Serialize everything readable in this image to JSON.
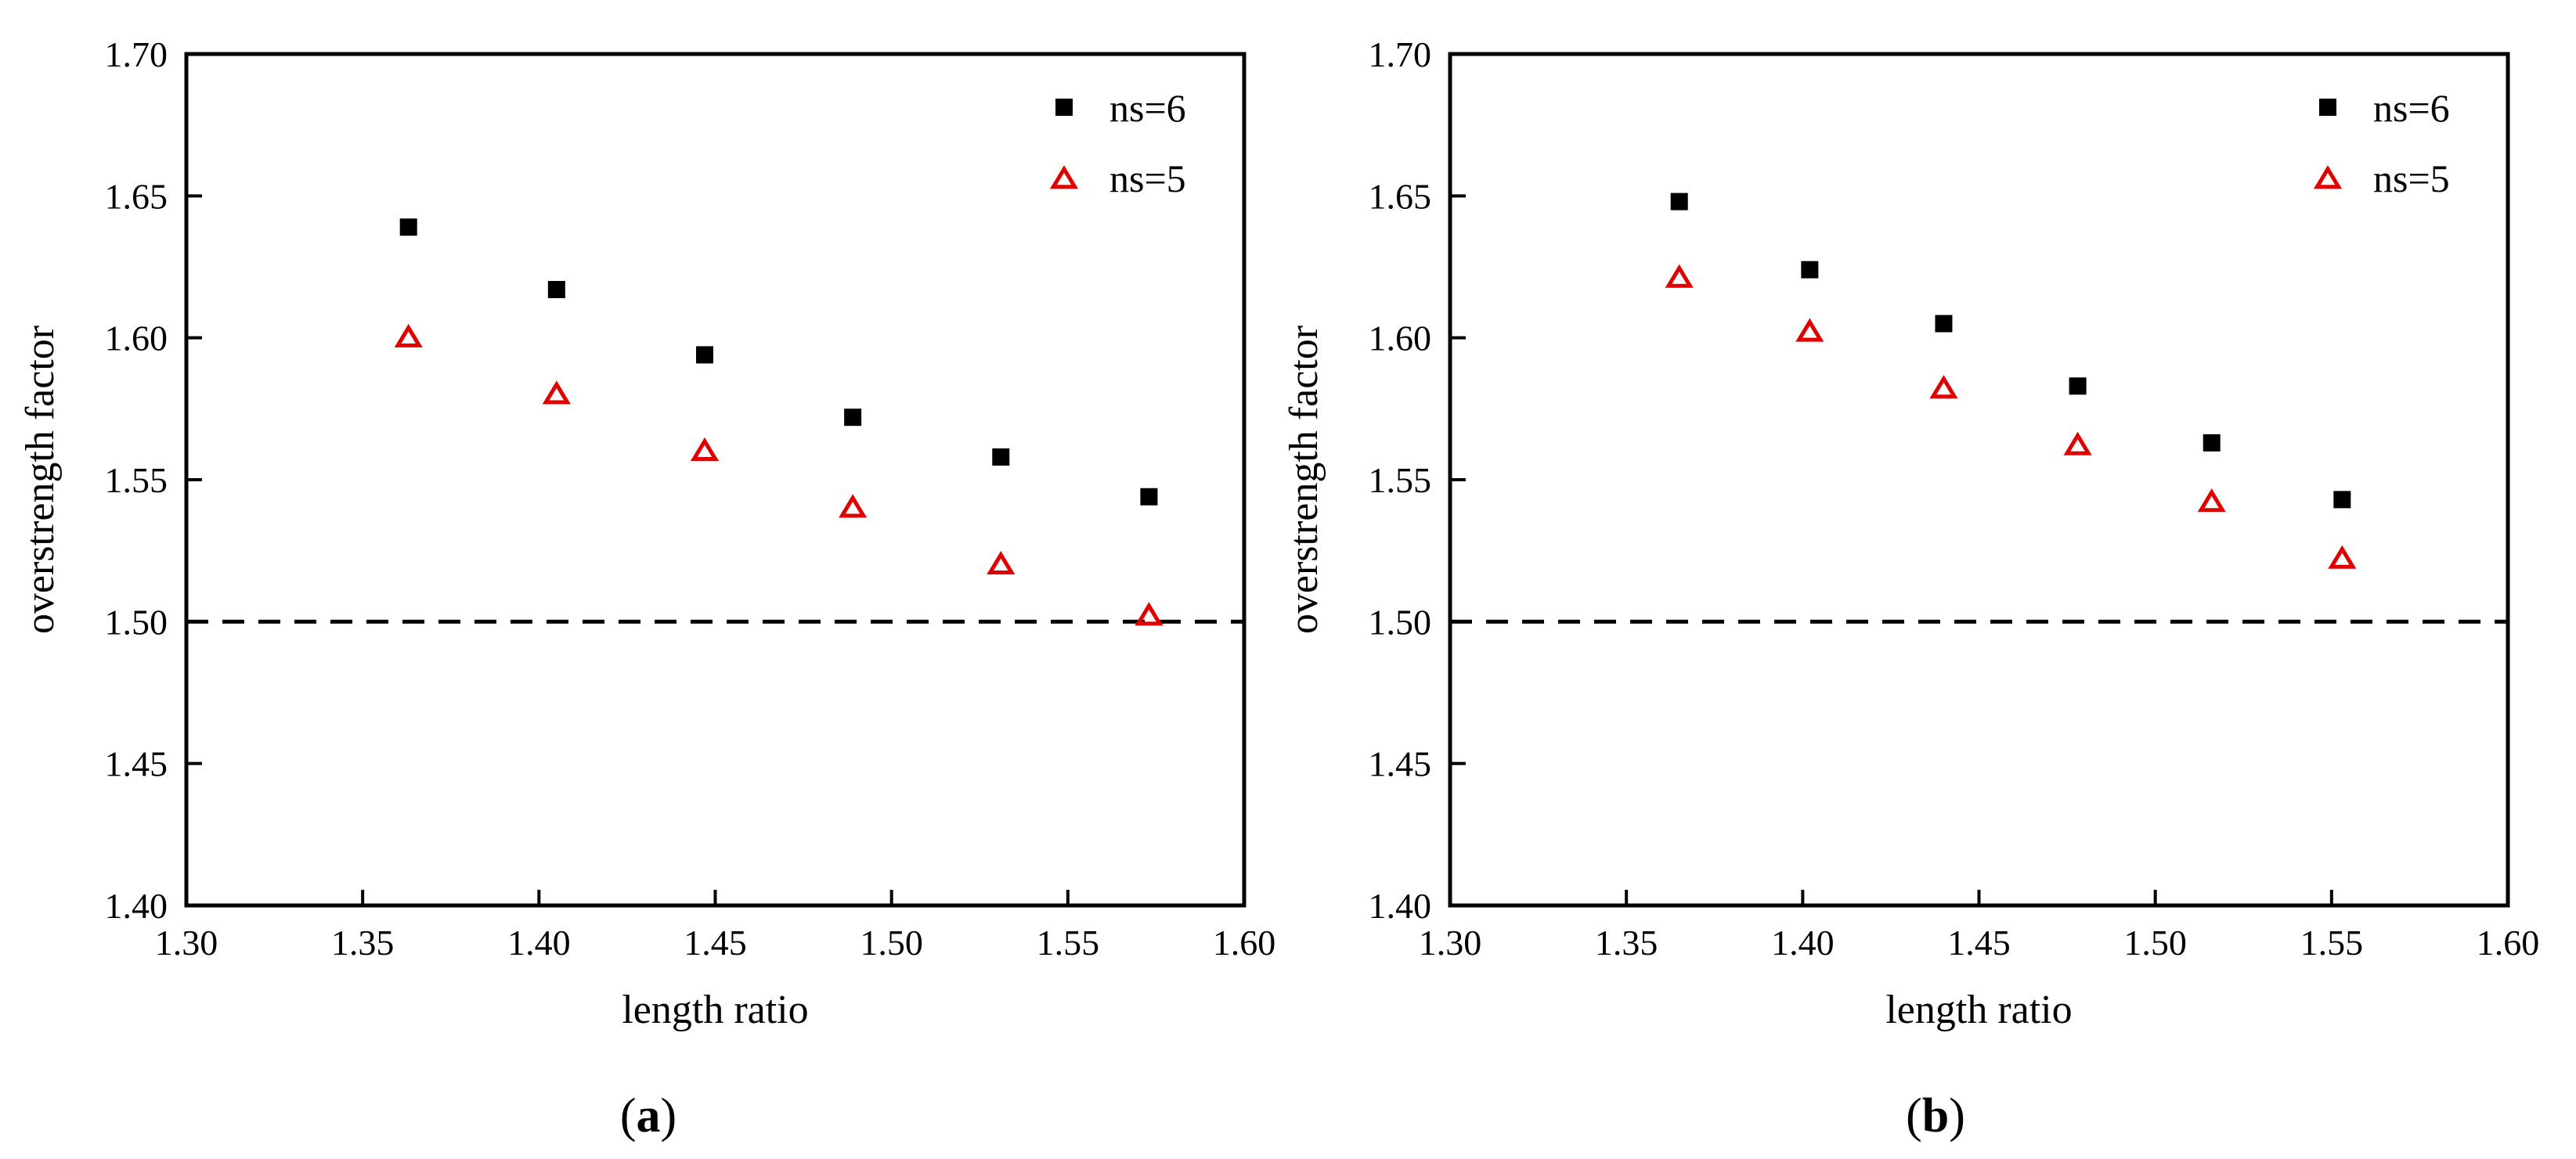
{
  "colors": {
    "series_ns6": "#000000",
    "series_ns5": "#e00000",
    "reference_line": "#000000"
  },
  "chart_data": [
    {
      "type": "scatter",
      "panel_label": {
        "open": "(",
        "letter": "a",
        "close": ")"
      },
      "xlabel": "length ratio",
      "ylabel": "overstrength factor",
      "xlim": [
        1.3,
        1.6
      ],
      "ylim": [
        1.4,
        1.7
      ],
      "xticks": [
        "1.30",
        "1.35",
        "1.40",
        "1.45",
        "1.50",
        "1.55",
        "1.60"
      ],
      "yticks": [
        "1.40",
        "1.45",
        "1.50",
        "1.55",
        "1.60",
        "1.65",
        "1.70"
      ],
      "grid": false,
      "legend_position": "top-right",
      "reference_line": {
        "y": 1.5,
        "style": "dashed"
      },
      "series": [
        {
          "name": "ns=6",
          "marker": "filled-square",
          "x": [
            1.363,
            1.405,
            1.447,
            1.489,
            1.531,
            1.573
          ],
          "y": [
            1.639,
            1.617,
            1.594,
            1.572,
            1.558,
            1.544
          ]
        },
        {
          "name": "ns=5",
          "marker": "open-triangle",
          "x": [
            1.363,
            1.405,
            1.447,
            1.489,
            1.531,
            1.573
          ],
          "y": [
            1.6,
            1.58,
            1.56,
            1.54,
            1.52,
            1.502
          ]
        }
      ]
    },
    {
      "type": "scatter",
      "panel_label": {
        "open": "(",
        "letter": "b",
        "close": ")"
      },
      "xlabel": "length ratio",
      "ylabel": "overstrength factor",
      "xlim": [
        1.3,
        1.6
      ],
      "ylim": [
        1.4,
        1.7
      ],
      "xticks": [
        "1.30",
        "1.35",
        "1.40",
        "1.45",
        "1.50",
        "1.55",
        "1.60"
      ],
      "yticks": [
        "1.40",
        "1.45",
        "1.50",
        "1.55",
        "1.60",
        "1.65",
        "1.70"
      ],
      "grid": false,
      "legend_position": "top-right",
      "reference_line": {
        "y": 1.5,
        "style": "dashed"
      },
      "series": [
        {
          "name": "ns=6",
          "marker": "filled-square",
          "x": [
            1.365,
            1.402,
            1.44,
            1.478,
            1.516,
            1.553
          ],
          "y": [
            1.648,
            1.624,
            1.605,
            1.583,
            1.563,
            1.543
          ]
        },
        {
          "name": "ns=5",
          "marker": "open-triangle",
          "x": [
            1.365,
            1.402,
            1.44,
            1.478,
            1.516,
            1.553
          ],
          "y": [
            1.621,
            1.602,
            1.582,
            1.562,
            1.542,
            1.522
          ]
        }
      ]
    }
  ]
}
